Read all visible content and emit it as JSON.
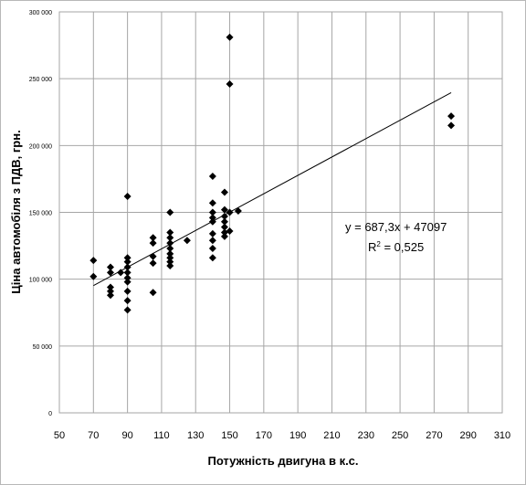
{
  "chart_data": {
    "type": "scatter",
    "title": "",
    "xlabel": "Потужність двигуна  в к.с.",
    "ylabel": "Ціна автомобіля  з ПДВ, грн.",
    "xlim": [
      50,
      310
    ],
    "ylim": [
      0,
      300000
    ],
    "x_ticks": [
      "50",
      "70",
      "90",
      "110",
      "130",
      "150",
      "170",
      "190",
      "210",
      "230",
      "250",
      "270",
      "290",
      "310"
    ],
    "y_ticks": [
      "0",
      "50 000",
      "100 000",
      "150 000",
      "200 000",
      "250 000",
      "300 000"
    ],
    "grid": true,
    "legend": "none",
    "marker_color": "#000000",
    "points": [
      {
        "x": 70,
        "y": 114000
      },
      {
        "x": 70,
        "y": 102000
      },
      {
        "x": 80,
        "y": 109000
      },
      {
        "x": 80,
        "y": 105000
      },
      {
        "x": 80,
        "y": 94000
      },
      {
        "x": 80,
        "y": 91000
      },
      {
        "x": 80,
        "y": 88000
      },
      {
        "x": 86,
        "y": 105000
      },
      {
        "x": 90,
        "y": 162000
      },
      {
        "x": 90,
        "y": 116000
      },
      {
        "x": 90,
        "y": 113000
      },
      {
        "x": 90,
        "y": 109000
      },
      {
        "x": 90,
        "y": 105000
      },
      {
        "x": 90,
        "y": 101000
      },
      {
        "x": 90,
        "y": 98000
      },
      {
        "x": 90,
        "y": 91000
      },
      {
        "x": 90,
        "y": 84000
      },
      {
        "x": 90,
        "y": 77000
      },
      {
        "x": 105,
        "y": 131000
      },
      {
        "x": 105,
        "y": 127000
      },
      {
        "x": 105,
        "y": 117000
      },
      {
        "x": 105,
        "y": 112000
      },
      {
        "x": 105,
        "y": 90000
      },
      {
        "x": 115,
        "y": 150000
      },
      {
        "x": 115,
        "y": 135000
      },
      {
        "x": 115,
        "y": 131000
      },
      {
        "x": 115,
        "y": 127000
      },
      {
        "x": 115,
        "y": 123000
      },
      {
        "x": 115,
        "y": 119000
      },
      {
        "x": 115,
        "y": 116000
      },
      {
        "x": 115,
        "y": 113000
      },
      {
        "x": 115,
        "y": 110000
      },
      {
        "x": 125,
        "y": 129000
      },
      {
        "x": 140,
        "y": 177000
      },
      {
        "x": 140,
        "y": 157000
      },
      {
        "x": 140,
        "y": 150000
      },
      {
        "x": 140,
        "y": 146000
      },
      {
        "x": 140,
        "y": 143000
      },
      {
        "x": 140,
        "y": 134000
      },
      {
        "x": 140,
        "y": 129000
      },
      {
        "x": 140,
        "y": 123000
      },
      {
        "x": 140,
        "y": 116000
      },
      {
        "x": 147,
        "y": 165000
      },
      {
        "x": 147,
        "y": 152000
      },
      {
        "x": 147,
        "y": 147000
      },
      {
        "x": 147,
        "y": 143000
      },
      {
        "x": 147,
        "y": 139000
      },
      {
        "x": 147,
        "y": 135000
      },
      {
        "x": 147,
        "y": 132000
      },
      {
        "x": 150,
        "y": 281000
      },
      {
        "x": 150,
        "y": 246000
      },
      {
        "x": 150,
        "y": 150000
      },
      {
        "x": 150,
        "y": 136000
      },
      {
        "x": 155,
        "y": 151000
      },
      {
        "x": 280,
        "y": 222000
      },
      {
        "x": 280,
        "y": 215000
      }
    ],
    "trendline": {
      "type": "linear",
      "slope": 687.3,
      "intercept": 47097,
      "x_range": [
        70,
        280
      ],
      "equation_label": "y = 687,3x + 47097",
      "r2_prefix": "R",
      "r2_sup": "2",
      "r2_suffix": " = 0,525"
    }
  }
}
